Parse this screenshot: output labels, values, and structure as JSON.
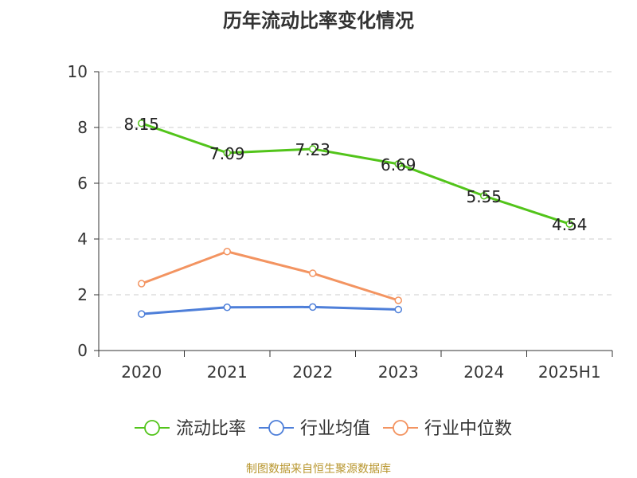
{
  "title": "历年流动比率变化情况",
  "source_text": "制图数据来自恒生聚源数据库",
  "chart_data": {
    "type": "line",
    "title": "历年流动比率变化情况",
    "categories": [
      "2020",
      "2021",
      "2022",
      "2023",
      "2024",
      "2025H1"
    ],
    "ylim": [
      0,
      10
    ],
    "yticks": [
      0,
      2,
      4,
      6,
      8,
      10
    ],
    "grid": true,
    "legend_position": "bottom",
    "series": [
      {
        "name": "流动比率",
        "color": "#52c41a",
        "values": [
          8.15,
          7.09,
          7.23,
          6.69,
          5.55,
          4.54
        ],
        "labels": [
          "8.15",
          "7.09",
          "7.23",
          "6.69",
          "5.55",
          "4.54"
        ]
      },
      {
        "name": "行业均值",
        "color": "#4e7fd9",
        "values": [
          1.31,
          1.55,
          1.56,
          1.47,
          null,
          null
        ]
      },
      {
        "name": "行业中位数",
        "color": "#f39461",
        "values": [
          2.4,
          3.55,
          2.77,
          1.8,
          null,
          null
        ]
      }
    ]
  }
}
